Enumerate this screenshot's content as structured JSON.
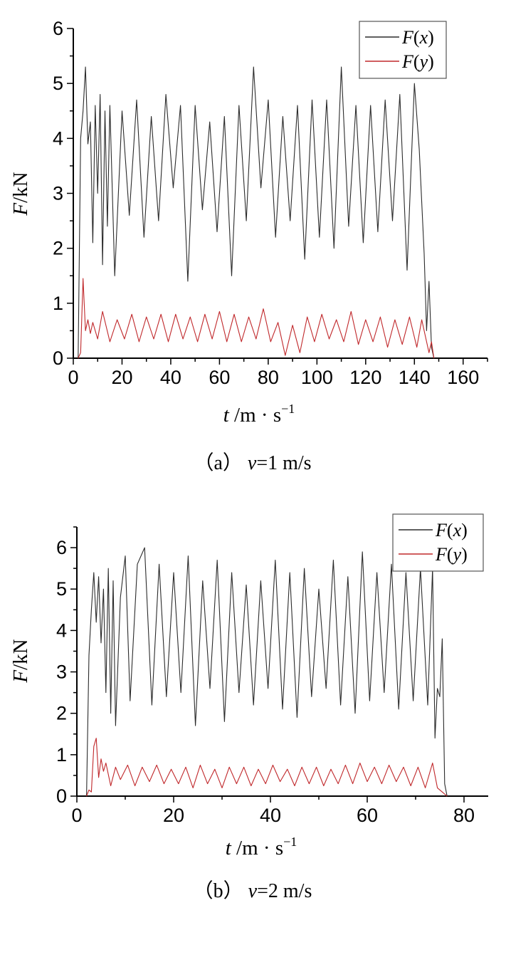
{
  "chart_data": [
    {
      "type": "line",
      "caption": {
        "prefix": "（a）",
        "var": "v",
        "rest": "=1 m/s"
      },
      "xlabel": {
        "var": "t",
        "unit": "/m · s",
        "sup": "−1"
      },
      "ylabel": {
        "var": "F",
        "unit": "/kN"
      },
      "xlim": [
        0,
        170
      ],
      "ylim": [
        0,
        6
      ],
      "xticks": [
        0,
        20,
        40,
        60,
        80,
        100,
        120,
        140,
        160
      ],
      "xtick_labels": [
        "0",
        "20",
        "40",
        "60",
        "80",
        "100",
        "120",
        "140",
        "160"
      ],
      "yticks": [
        0,
        1,
        2,
        3,
        4,
        5,
        6
      ],
      "ytick_labels": [
        "0",
        "1",
        "2",
        "3",
        "4",
        "5",
        "6"
      ],
      "grid": false,
      "legend": "top-right",
      "series": [
        {
          "name": "F(x)",
          "name_var": "F",
          "name_arg": "x",
          "color": "#2b2b2b",
          "x": [
            2,
            3,
            4,
            5,
            6,
            7,
            8,
            9,
            10,
            11,
            12,
            13,
            14,
            15,
            17,
            20,
            23,
            26,
            29,
            32,
            35,
            38,
            41,
            44,
            47,
            50,
            53,
            56,
            59,
            62,
            65,
            68,
            71,
            74,
            77,
            80,
            83,
            86,
            89,
            92,
            95,
            98,
            101,
            104,
            107,
            110,
            113,
            116,
            119,
            122,
            125,
            128,
            131,
            134,
            137,
            140,
            142,
            144,
            145,
            146,
            147,
            148
          ],
          "y": [
            0,
            4.0,
            4.5,
            5.3,
            3.9,
            4.3,
            2.1,
            4.6,
            3.0,
            4.8,
            1.7,
            4.5,
            2.4,
            4.6,
            1.5,
            4.5,
            2.6,
            4.7,
            2.2,
            4.4,
            2.5,
            4.8,
            3.1,
            4.6,
            1.4,
            4.6,
            2.7,
            4.3,
            2.3,
            4.4,
            1.5,
            4.6,
            2.5,
            5.3,
            3.1,
            4.7,
            2.2,
            4.4,
            2.5,
            4.6,
            1.8,
            4.7,
            2.2,
            4.7,
            2.0,
            5.3,
            2.4,
            4.6,
            2.1,
            4.6,
            2.3,
            4.7,
            2.5,
            4.8,
            1.6,
            5.0,
            3.8,
            1.9,
            0.5,
            1.4,
            0.2,
            0
          ]
        },
        {
          "name": "F(y)",
          "name_var": "F",
          "name_arg": "y",
          "color": "#c0282b",
          "x": [
            2,
            3,
            4,
            5,
            6,
            7,
            8,
            10,
            12,
            15,
            18,
            21,
            24,
            27,
            30,
            33,
            36,
            39,
            42,
            45,
            48,
            51,
            54,
            57,
            60,
            63,
            66,
            69,
            72,
            75,
            78,
            81,
            84,
            87,
            90,
            93,
            96,
            99,
            102,
            105,
            108,
            111,
            114,
            117,
            120,
            123,
            126,
            129,
            132,
            135,
            138,
            141,
            143,
            145,
            146,
            147,
            148
          ],
          "y": [
            0,
            0.1,
            1.45,
            0.5,
            0.7,
            0.45,
            0.65,
            0.35,
            0.85,
            0.3,
            0.7,
            0.35,
            0.8,
            0.3,
            0.75,
            0.35,
            0.8,
            0.3,
            0.8,
            0.35,
            0.75,
            0.3,
            0.8,
            0.35,
            0.85,
            0.3,
            0.8,
            0.3,
            0.75,
            0.35,
            0.9,
            0.3,
            0.65,
            0.05,
            0.6,
            0.1,
            0.75,
            0.3,
            0.8,
            0.35,
            0.7,
            0.3,
            0.85,
            0.25,
            0.7,
            0.3,
            0.75,
            0.2,
            0.7,
            0.25,
            0.75,
            0.2,
            0.7,
            0.3,
            0.1,
            0.3,
            0
          ]
        }
      ]
    },
    {
      "type": "line",
      "caption": {
        "prefix": "（b）",
        "var": "v",
        "rest": "=2 m/s"
      },
      "xlabel": {
        "var": "t",
        "unit": "/m · s",
        "sup": "−1"
      },
      "ylabel": {
        "var": "F",
        "unit": "/kN"
      },
      "xlim": [
        0,
        85
      ],
      "ylim": [
        0,
        6.5
      ],
      "xticks": [
        0,
        20,
        40,
        60,
        80
      ],
      "xtick_labels": [
        "0",
        "20",
        "40",
        "60",
        "80"
      ],
      "yticks": [
        0,
        1,
        2,
        3,
        4,
        5,
        6
      ],
      "ytick_labels": [
        "0",
        "1",
        "2",
        "3",
        "4",
        "5",
        "6"
      ],
      "grid": false,
      "legend": "top-right",
      "series": [
        {
          "name": "F(x)",
          "name_var": "F",
          "name_arg": "x",
          "color": "#2b2b2b",
          "x": [
            2,
            2.5,
            3,
            3.5,
            4,
            4.5,
            5,
            5.5,
            6,
            6.5,
            7,
            7.5,
            8,
            9,
            10,
            11,
            12.5,
            14,
            15.5,
            17,
            18.5,
            20,
            21.5,
            23,
            24.5,
            26,
            27.5,
            29,
            30.5,
            32,
            33.5,
            35,
            36.5,
            38,
            39.5,
            41,
            42.5,
            44,
            45.5,
            47,
            48.5,
            50,
            51.5,
            53,
            54.5,
            56,
            57.5,
            59,
            60.5,
            62,
            63.5,
            65,
            66.5,
            68,
            69.5,
            71,
            72.5,
            73.5,
            74,
            74.5,
            75,
            75.5,
            76,
            76.5
          ],
          "y": [
            0,
            3.4,
            4.5,
            5.4,
            4.2,
            5.3,
            3.7,
            5.0,
            2.5,
            5.5,
            2.0,
            5.2,
            1.7,
            4.8,
            5.8,
            2.3,
            5.6,
            6.0,
            2.2,
            5.6,
            2.4,
            5.4,
            2.5,
            5.8,
            1.7,
            5.2,
            2.6,
            5.7,
            1.8,
            5.4,
            2.5,
            5.1,
            2.2,
            5.2,
            2.6,
            5.7,
            2.1,
            5.4,
            1.9,
            5.5,
            2.4,
            5.0,
            2.6,
            5.7,
            2.2,
            5.3,
            2.0,
            5.9,
            2.3,
            5.4,
            2.5,
            5.6,
            2.1,
            5.4,
            2.3,
            5.5,
            2.2,
            5.5,
            1.4,
            2.6,
            2.4,
            3.8,
            0.3,
            0
          ]
        },
        {
          "name": "F(y)",
          "name_var": "F",
          "name_arg": "y",
          "color": "#c0282b",
          "x": [
            2,
            2.5,
            3,
            3.5,
            4,
            4.5,
            5,
            5.5,
            6,
            7,
            8,
            9,
            10.5,
            12,
            13.5,
            15,
            16.5,
            18,
            19.5,
            21,
            22.5,
            24,
            25.5,
            27,
            28.5,
            30,
            31.5,
            33,
            34.5,
            36,
            37.5,
            39,
            40.5,
            42,
            43.5,
            45,
            46.5,
            48,
            49.5,
            51,
            52.5,
            54,
            55.5,
            57,
            58.5,
            60,
            61.5,
            63,
            64.5,
            66,
            67.5,
            69,
            70.5,
            72,
            73.5,
            74.5,
            75.5,
            76.5
          ],
          "y": [
            0,
            0.15,
            0.1,
            1.2,
            1.4,
            0.45,
            0.9,
            0.6,
            0.8,
            0.25,
            0.7,
            0.4,
            0.75,
            0.25,
            0.7,
            0.35,
            0.75,
            0.3,
            0.65,
            0.3,
            0.7,
            0.2,
            0.75,
            0.3,
            0.65,
            0.2,
            0.7,
            0.3,
            0.7,
            0.25,
            0.65,
            0.3,
            0.75,
            0.35,
            0.65,
            0.25,
            0.7,
            0.3,
            0.7,
            0.25,
            0.65,
            0.3,
            0.75,
            0.3,
            0.8,
            0.35,
            0.7,
            0.3,
            0.75,
            0.35,
            0.7,
            0.25,
            0.7,
            0.2,
            0.8,
            0.2,
            0.1,
            0
          ]
        }
      ]
    }
  ]
}
